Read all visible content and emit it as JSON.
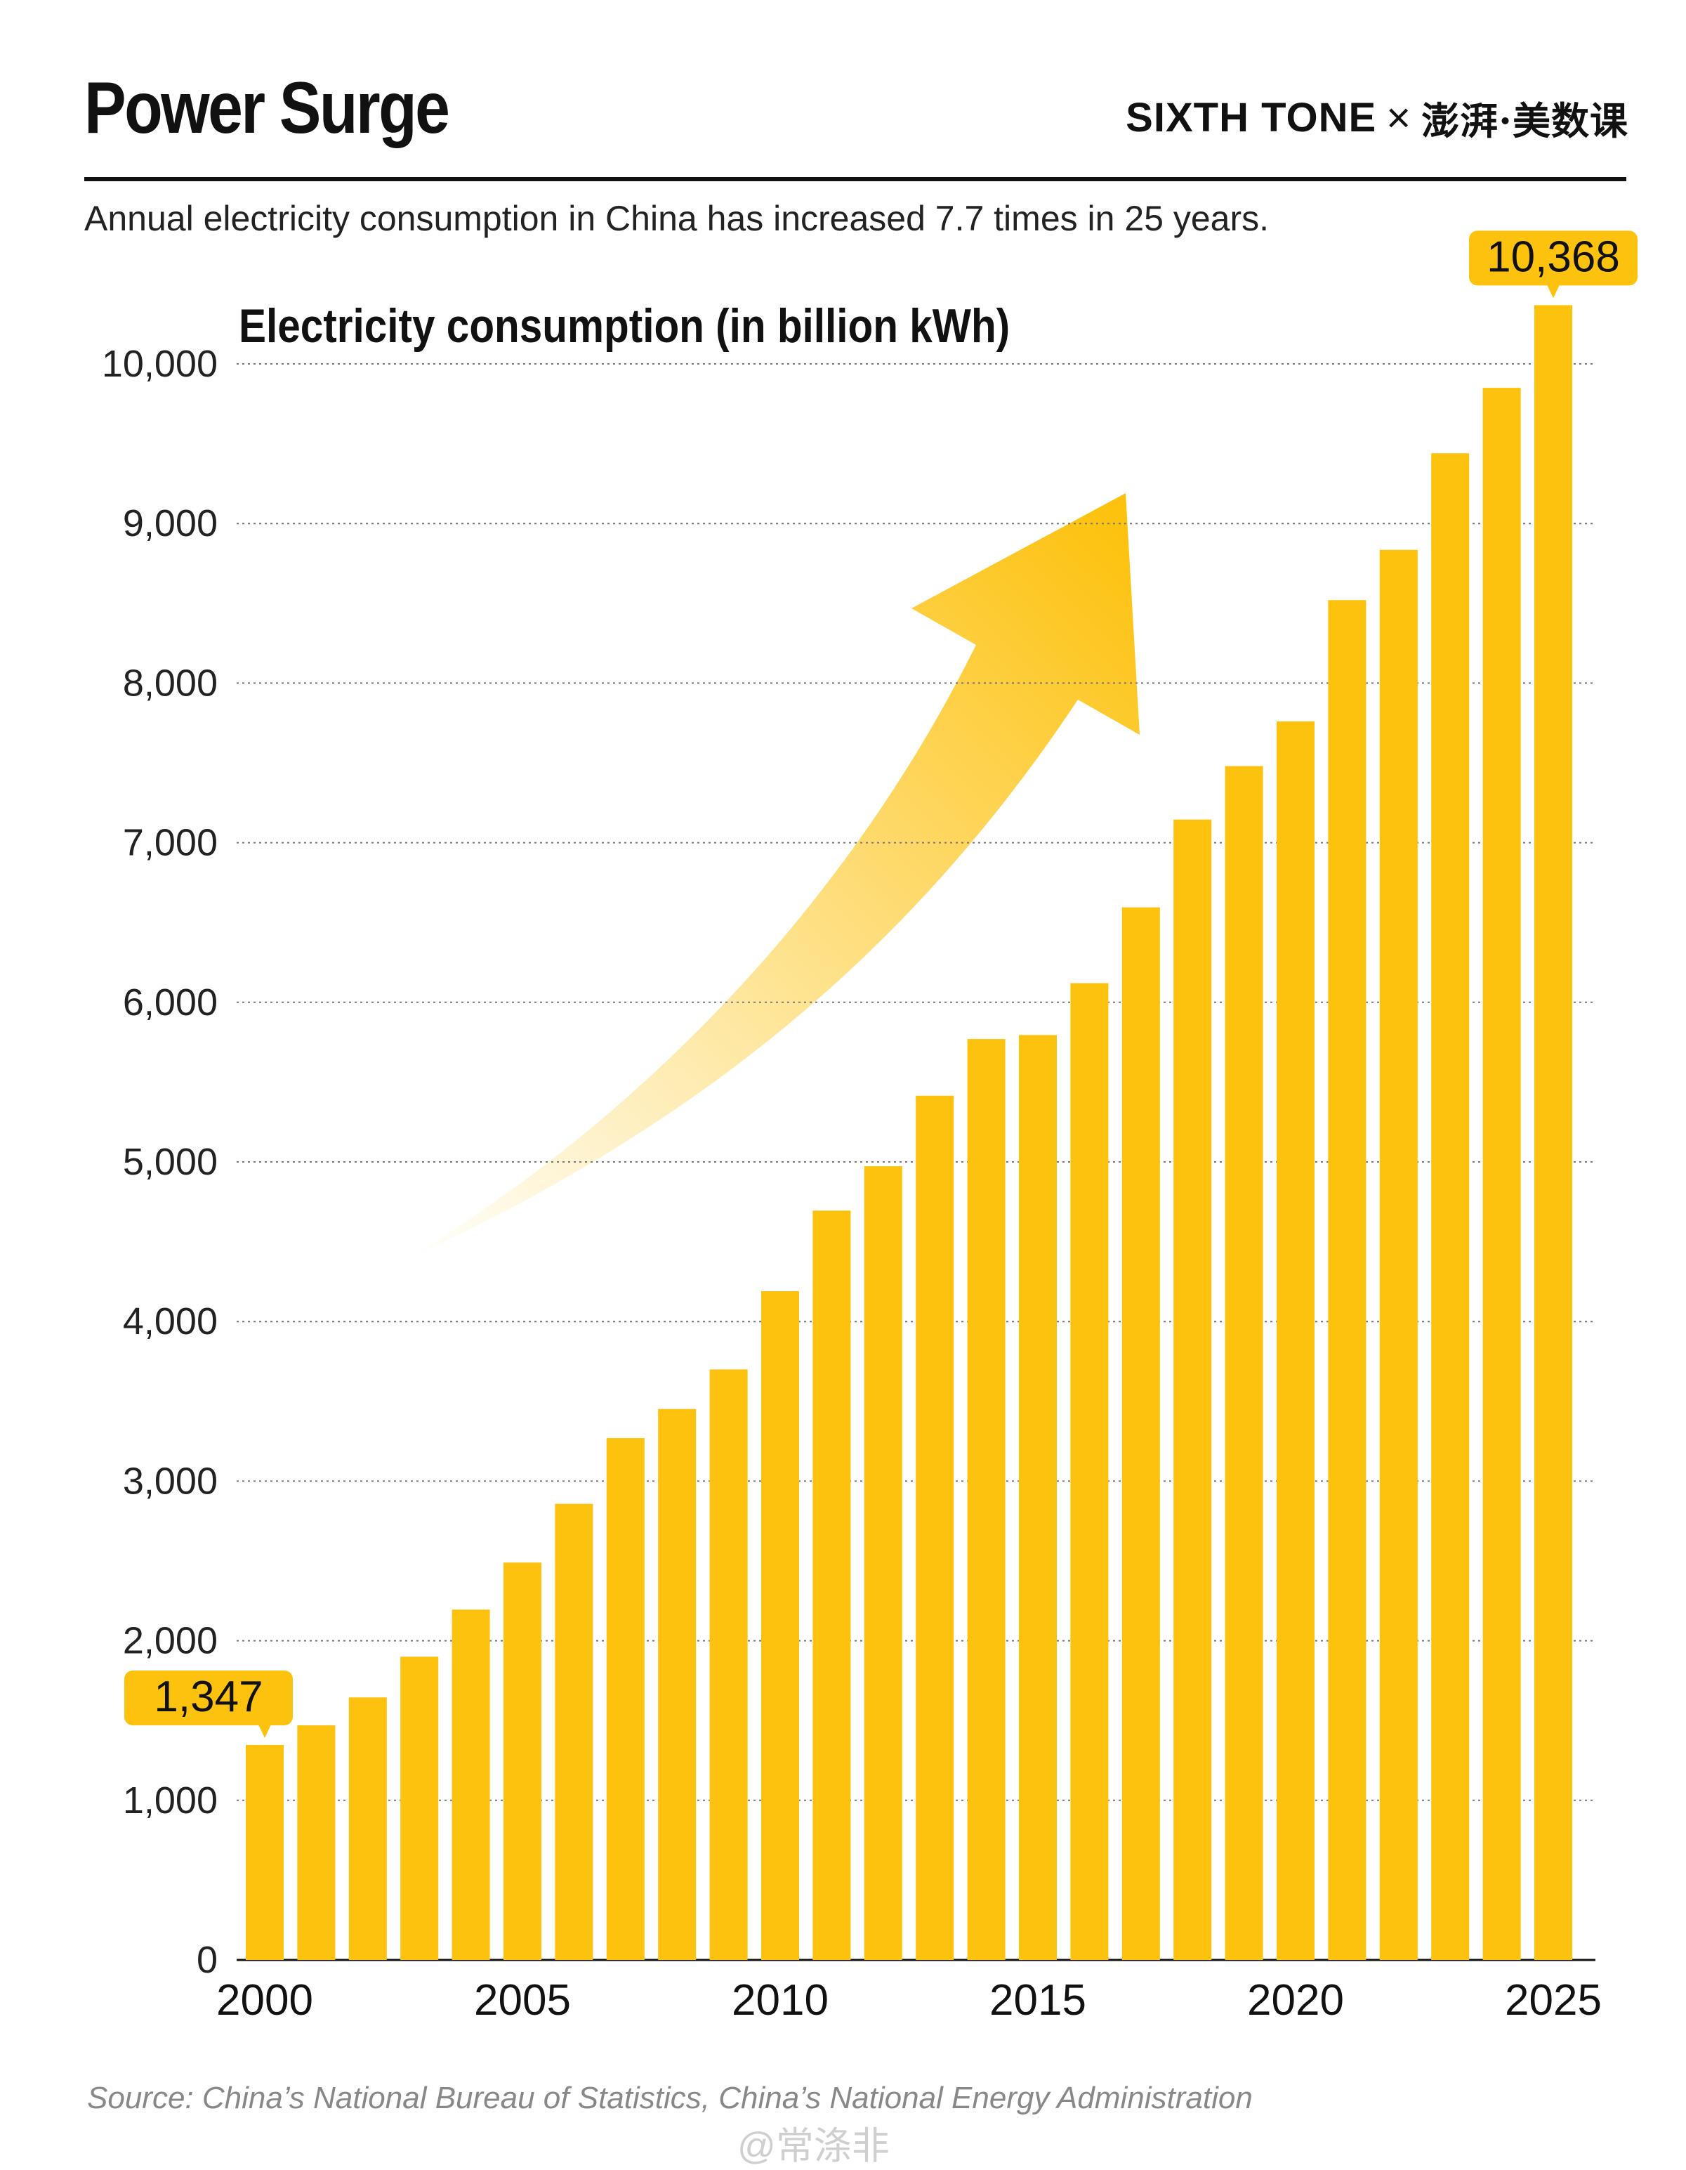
{
  "header": {
    "title": "Power Surge",
    "brand": "SIXTH TONE",
    "brand_separator": "×",
    "brand_partner": "澎湃·美数课",
    "subtitle": "Annual electricity consumption in China has increased 7.7 times in 25 years."
  },
  "chart_data": {
    "type": "bar",
    "title": "Electricity consumption (in billion kWh)",
    "xlabel": "",
    "ylabel": "Electricity consumption (in billion kWh)",
    "categories": [
      "2000",
      "2001",
      "2002",
      "2003",
      "2004",
      "2005",
      "2006",
      "2007",
      "2008",
      "2009",
      "2010",
      "2011",
      "2012",
      "2013",
      "2014",
      "2015",
      "2016",
      "2017",
      "2018",
      "2019",
      "2020",
      "2021",
      "2022",
      "2023",
      "2024",
      "2025"
    ],
    "values": [
      1347,
      1470,
      1645,
      1900,
      2195,
      2490,
      2858,
      3270,
      3452,
      3700,
      4190,
      4695,
      4973,
      5415,
      5770,
      5795,
      6120,
      6595,
      7145,
      7480,
      7760,
      8520,
      8835,
      9440,
      9850,
      10368
    ],
    "x_tick_labels": [
      "2000",
      "2005",
      "2010",
      "2015",
      "2020",
      "2025"
    ],
    "y_tick_labels": [
      "0",
      "1,000",
      "2,000",
      "3,000",
      "4,000",
      "5,000",
      "6,000",
      "7,000",
      "8,000",
      "9,000",
      "10,000"
    ],
    "ylim": [
      0,
      10368
    ],
    "grid": "horizontal dotted",
    "annotations": [
      {
        "category": "2000",
        "label": "1,347"
      },
      {
        "category": "2025",
        "label": "10,368"
      }
    ],
    "colors": {
      "bar": "#FDC20E",
      "label_bg": "#FDC20E",
      "arrow": "#FDC20E"
    }
  },
  "footer": {
    "source": "Source: China’s National Bureau of Statistics, China’s National Energy Administration",
    "watermark": "@常涤非"
  }
}
